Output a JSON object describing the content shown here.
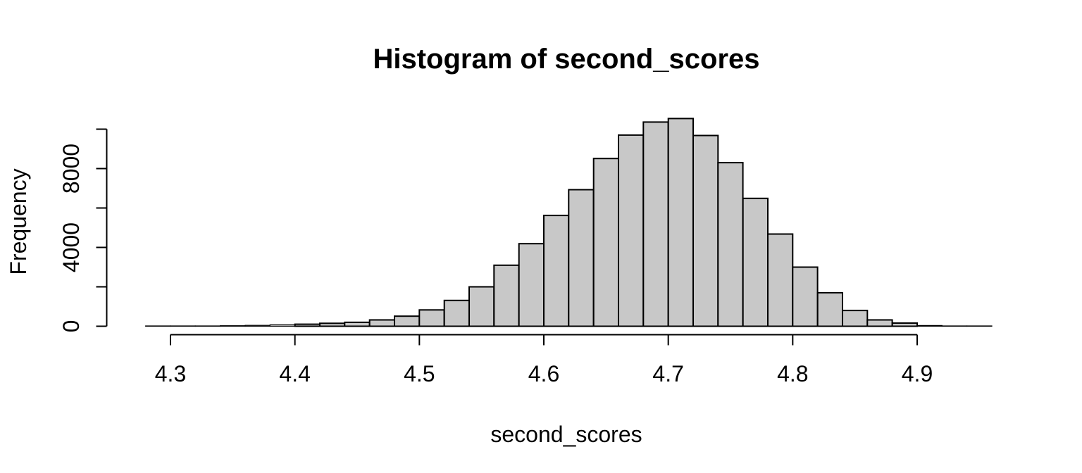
{
  "chart_data": {
    "type": "bar",
    "subtype": "histogram",
    "title": "Histogram of second_scores",
    "xlabel": "second_scores",
    "ylabel": "Frequency",
    "grid": false,
    "legend": null,
    "bin_start": 4.28,
    "bin_width": 0.02,
    "xlim": [
      4.28,
      4.96
    ],
    "ylim": [
      0,
      10000
    ],
    "counts": [
      8,
      12,
      18,
      28,
      45,
      70,
      105,
      150,
      200,
      320,
      510,
      830,
      1310,
      2000,
      3095,
      4190,
      5620,
      6930,
      8510,
      9700,
      10360,
      10540,
      9680,
      8300,
      6490,
      4680,
      3000,
      1700,
      800,
      320,
      160,
      40,
      15,
      5
    ],
    "x_ticks": [
      {
        "value": 4.3,
        "label": "4.3"
      },
      {
        "value": 4.4,
        "label": "4.4"
      },
      {
        "value": 4.5,
        "label": "4.5"
      },
      {
        "value": 4.6,
        "label": "4.6"
      },
      {
        "value": 4.7,
        "label": "4.7"
      },
      {
        "value": 4.8,
        "label": "4.8"
      },
      {
        "value": 4.9,
        "label": "4.9"
      }
    ],
    "y_ticks": [
      {
        "value": 0,
        "label": "0"
      },
      {
        "value": 2000,
        "label": ""
      },
      {
        "value": 4000,
        "label": "4000"
      },
      {
        "value": 6000,
        "label": ""
      },
      {
        "value": 8000,
        "label": "8000"
      },
      {
        "value": 10000,
        "label": ""
      }
    ],
    "colors": {
      "bar_fill": "#c8c8c8",
      "bar_stroke": "#000000",
      "axis": "#000000",
      "text": "#000000",
      "background": "#ffffff"
    }
  }
}
